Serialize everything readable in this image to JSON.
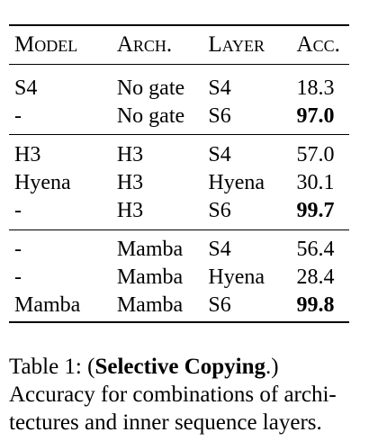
{
  "table": {
    "headers": [
      "Model",
      "Arch.",
      "Layer",
      "Acc."
    ],
    "groups": [
      [
        {
          "model": "S4",
          "arch": "No gate",
          "layer": "S4",
          "acc": "18.3",
          "best": false
        },
        {
          "model": "-",
          "arch": "No gate",
          "layer": "S6",
          "acc": "97.0",
          "best": true
        }
      ],
      [
        {
          "model": "H3",
          "arch": "H3",
          "layer": "S4",
          "acc": "57.0",
          "best": false
        },
        {
          "model": "Hyena",
          "arch": "H3",
          "layer": "Hyena",
          "acc": "30.1",
          "best": false
        },
        {
          "model": "-",
          "arch": "H3",
          "layer": "S6",
          "acc": "99.7",
          "best": true
        }
      ],
      [
        {
          "model": "-",
          "arch": "Mamba",
          "layer": "S4",
          "acc": "56.4",
          "best": false
        },
        {
          "model": "-",
          "arch": "Mamba",
          "layer": "Hyena",
          "acc": "28.4",
          "best": false
        },
        {
          "model": "Mamba",
          "arch": "Mamba",
          "layer": "S6",
          "acc": "99.8",
          "best": true
        }
      ]
    ]
  },
  "caption": {
    "prefix": "Table 1: (",
    "title": "Selective Copying",
    "title_suffix": ".)",
    "text": "Accuracy for combinations of archi-tectures and inner sequence layers."
  }
}
